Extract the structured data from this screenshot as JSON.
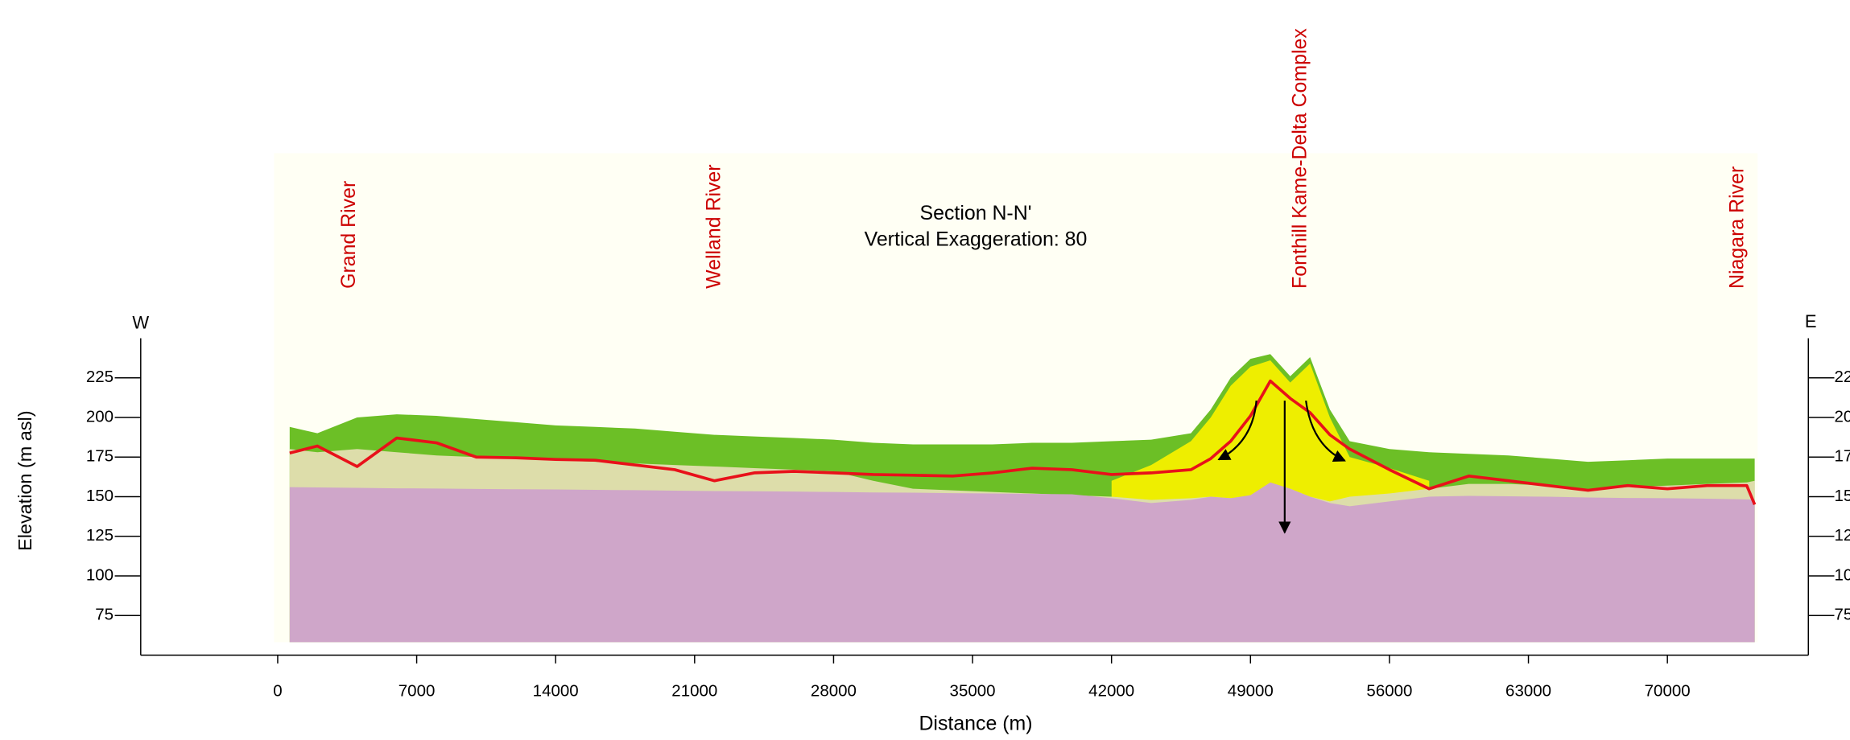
{
  "chart_data": {
    "type": "area",
    "title": "Section N-N'",
    "subtitle": "Vertical Exaggeration: 80",
    "x_label": "Distance (m)",
    "y_label": "Elevation (m asl)",
    "left_label": "W",
    "right_label": "E",
    "annotations": [
      {
        "text": "Grand River",
        "x": 3266
      },
      {
        "text": "Welland River",
        "x": 21670
      },
      {
        "text": "Fonthill Kame-Delta Complex",
        "x": 51180
      },
      {
        "text": "Niagara River",
        "x": 73200
      }
    ],
    "xlim": [
      -6900,
      77100
    ],
    "ylim": [
      50,
      250
    ],
    "xticks": [
      0,
      7000,
      14000,
      21000,
      28000,
      35000,
      42000,
      49000,
      56000,
      63000,
      70000
    ],
    "yticks": [
      75,
      100,
      125,
      150,
      175,
      200,
      225
    ],
    "x": [
      600,
      2000,
      4000,
      6000,
      8000,
      10000,
      12000,
      14000,
      16000,
      18000,
      20000,
      22000,
      24000,
      26000,
      28000,
      30000,
      32000,
      34000,
      36000,
      38000,
      40000,
      42000,
      44000,
      46000,
      47000,
      48000,
      49000,
      50000,
      51000,
      52000,
      53000,
      54000,
      56000,
      58000,
      60000,
      62000,
      64000,
      66000,
      68000,
      70000,
      72000,
      74000,
      74400
    ],
    "series": [
      {
        "type": "area",
        "color": "#6cbf26",
        "values": [
          194,
          190,
          200,
          202,
          201,
          199,
          197,
          195,
          194,
          193,
          191,
          189,
          188,
          187,
          186,
          184,
          183,
          183,
          183,
          184,
          184,
          185,
          186,
          190,
          205,
          225,
          237,
          240,
          226,
          238,
          205,
          185,
          180,
          178,
          177,
          176,
          174,
          172,
          173,
          174,
          174,
          174,
          174
        ]
      },
      {
        "type": "area",
        "color": "#eeee00",
        "values": [
          null,
          null,
          null,
          null,
          null,
          null,
          null,
          null,
          null,
          null,
          null,
          null,
          null,
          null,
          null,
          null,
          null,
          null,
          null,
          null,
          null,
          160,
          170,
          185,
          200,
          220,
          232,
          236,
          222,
          234,
          200,
          175,
          168,
          160,
          null,
          null,
          null,
          null,
          null,
          null,
          null,
          null,
          null
        ]
      },
      {
        "type": "area",
        "color": "#ddddaa",
        "values": [
          180,
          178,
          180,
          178,
          176,
          175,
          174,
          173,
          172,
          171,
          170,
          169,
          168,
          167,
          166,
          160,
          155,
          154,
          153,
          152,
          151,
          150,
          148,
          149,
          150,
          149,
          150,
          152,
          155,
          150,
          147,
          150,
          152,
          155,
          158,
          158,
          157,
          154,
          156,
          157,
          158,
          159,
          160
        ]
      },
      {
        "type": "area",
        "color": "#cfa6c9",
        "values": [
          156,
          155.8,
          155.6,
          155.3,
          155.1,
          154.9,
          154.7,
          154.5,
          154.3,
          154.1,
          153.8,
          153.6,
          153.4,
          153.2,
          153,
          152.7,
          152.5,
          152.2,
          152,
          151.8,
          151.5,
          149,
          146,
          148,
          150,
          149,
          151,
          159,
          155,
          150,
          146,
          144,
          147,
          150,
          150.5,
          150.2,
          150,
          149.5,
          149.2,
          149,
          148.7,
          148.3,
          148.2
        ]
      },
      {
        "type": "line",
        "color": "#e8111a",
        "values": [
          177.5,
          182,
          169,
          187,
          184,
          175,
          174.5,
          173.5,
          173,
          170,
          167,
          160,
          165,
          166,
          165,
          164,
          163.5,
          163,
          165,
          168,
          167,
          164,
          165,
          167,
          174,
          185,
          201,
          223,
          212,
          203,
          189,
          180,
          167,
          155,
          163,
          160,
          157,
          154,
          157,
          155,
          157,
          157,
          145
        ]
      }
    ]
  }
}
